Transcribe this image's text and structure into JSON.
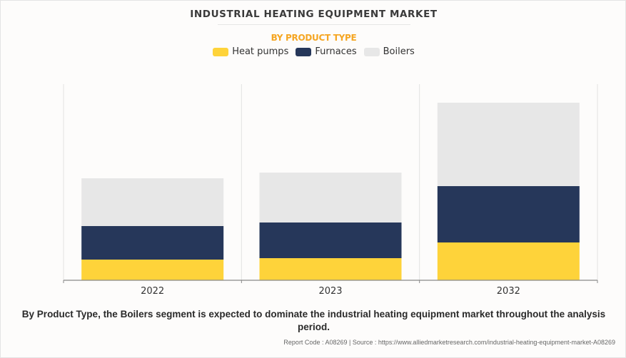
{
  "chart_data": {
    "type": "bar",
    "stacked": true,
    "title": "INDUSTRIAL HEATING EQUIPMENT MARKET",
    "subtitle": "BY PRODUCT TYPE",
    "xlabel": "",
    "ylabel": "",
    "y_axis_shown": false,
    "value_units": "relative (no axis labels shown)",
    "ylim": [
      0,
      275
    ],
    "grid": "vertical separators between categories",
    "legend_position": "top-center",
    "categories": [
      "2022",
      "2023",
      "2032"
    ],
    "series": [
      {
        "name": "Heat pumps",
        "color": "#fed33a",
        "values": [
          29,
          31,
          53
        ]
      },
      {
        "name": "Furnaces",
        "color": "#26375a",
        "values": [
          47,
          50,
          79
        ]
      },
      {
        "name": "Boilers",
        "color": "#e7e7e7",
        "values": [
          67,
          70,
          117
        ]
      }
    ]
  },
  "caption": "By Product Type, the Boilers segment is expected to dominate the industrial heating equipment market throughout the analysis period.",
  "footer": "Report Code : A08269  |  Source : https://www.alliedmarketresearch.com/industrial-heating-equipment-market-A08269"
}
